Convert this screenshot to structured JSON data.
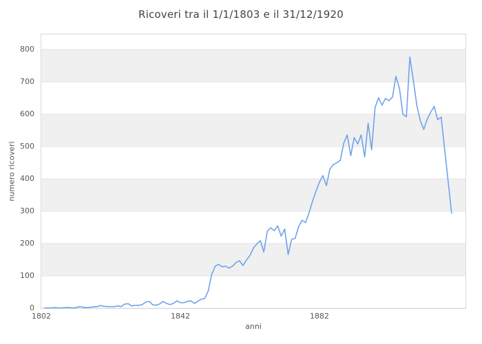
{
  "title": "Ricoveri tra il 1/1/1803 e il 31/12/1920",
  "colors": {
    "line": "#6ea3ea",
    "band": "#f0f0f0",
    "gridline": "#e3e3e3",
    "plot_border": "#d9d9d9",
    "tick_text": "#565656",
    "title_text": "#444444",
    "background": "#ffffff"
  },
  "chart_data": {
    "type": "line",
    "title": "Ricoveri tra il 1/1/1803 e il 31/12/1920",
    "xlabel": "anni",
    "ylabel": "numero ricoveri",
    "legend": "none",
    "grid": "horizontal-bands",
    "band_style": "alternating light-gray horizontal bands every 100 units (100-200, 300-400, 500-600, 700-800 shaded)",
    "xlim": [
      1802,
      1924
    ],
    "ylim": [
      0,
      849
    ],
    "x_ticks": [
      1802,
      1842,
      1882
    ],
    "y_ticks": [
      0,
      100,
      200,
      300,
      400,
      500,
      600,
      700,
      800
    ],
    "x": [
      1803,
      1804,
      1805,
      1806,
      1807,
      1808,
      1809,
      1810,
      1811,
      1812,
      1813,
      1814,
      1815,
      1816,
      1817,
      1818,
      1819,
      1820,
      1821,
      1822,
      1823,
      1824,
      1825,
      1826,
      1827,
      1828,
      1829,
      1830,
      1831,
      1832,
      1833,
      1834,
      1835,
      1836,
      1837,
      1838,
      1839,
      1840,
      1841,
      1842,
      1843,
      1844,
      1845,
      1846,
      1847,
      1848,
      1849,
      1850,
      1851,
      1852,
      1853,
      1854,
      1855,
      1856,
      1857,
      1858,
      1859,
      1860,
      1861,
      1862,
      1863,
      1864,
      1865,
      1866,
      1867,
      1868,
      1869,
      1870,
      1871,
      1872,
      1873,
      1874,
      1875,
      1876,
      1877,
      1878,
      1879,
      1880,
      1881,
      1882,
      1883,
      1884,
      1885,
      1886,
      1887,
      1888,
      1889,
      1890,
      1891,
      1892,
      1893,
      1894,
      1895,
      1896,
      1897,
      1898,
      1899,
      1900,
      1901,
      1902,
      1903,
      1904,
      1905,
      1906,
      1907,
      1908,
      1909,
      1910,
      1911,
      1912,
      1913,
      1914,
      1915,
      1916,
      1917,
      1918,
      1919,
      1920
    ],
    "values": [
      1,
      1,
      1,
      2,
      1,
      1,
      2,
      2,
      1,
      2,
      5,
      3,
      2,
      3,
      4,
      5,
      8,
      6,
      5,
      5,
      5,
      7,
      5,
      13,
      14,
      7,
      9,
      9,
      11,
      19,
      21,
      11,
      9,
      13,
      21,
      15,
      11,
      15,
      23,
      17,
      17,
      21,
      23,
      15,
      21,
      28,
      30,
      53,
      104,
      130,
      136,
      128,
      130,
      124,
      130,
      141,
      147,
      132,
      149,
      163,
      186,
      199,
      209,
      174,
      238,
      249,
      240,
      255,
      223,
      245,
      166,
      213,
      216,
      252,
      272,
      265,
      295,
      330,
      362,
      390,
      410,
      379,
      430,
      444,
      450,
      457,
      511,
      536,
      472,
      528,
      508,
      536,
      468,
      572,
      490,
      621,
      651,
      628,
      649,
      642,
      653,
      717,
      680,
      600,
      592,
      777,
      705,
      628,
      580,
      553,
      585,
      606,
      624,
      583,
      591,
      492,
      393,
      294
    ]
  }
}
